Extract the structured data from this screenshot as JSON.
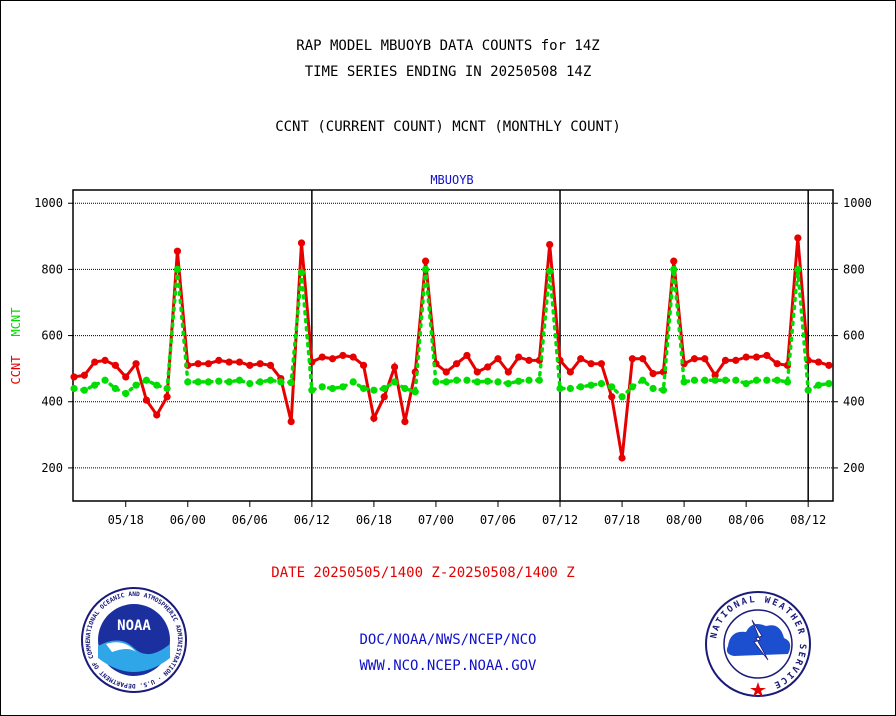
{
  "titles": {
    "line1": "RAP MODEL MBUOYB DATA COUNTS for 14Z",
    "line2": "TIME SERIES ENDING IN 20250508 14Z",
    "line3": "CCNT (CURRENT COUNT) MCNT (MONTHLY COUNT)"
  },
  "plot_label": "MBUOYB",
  "ylabel_ccnt": "CCNT",
  "ylabel_mcnt": "MCNT",
  "date_range": "DATE 20250505/1400 Z-20250508/1400 Z",
  "credits": {
    "line1": "DOC/NOAA/NWS/NCEP/NCO",
    "line2": "WWW.NCO.NCEP.NOAA.GOV"
  },
  "logos": {
    "left": "noaa-logo",
    "right": "national-weather-service-logo",
    "left_text": "NOAA",
    "left_ring_text": "NATIONAL OCEANIC AND ATMOSPHERIC ADMINISTRATION · U.S. DEPARTMENT OF COMMERCE",
    "right_ring_text": "NATIONAL WEATHER SERVICE"
  },
  "colors": {
    "ccnt": "#e60000",
    "mcnt": "#00dd00",
    "credits": "#1010c8"
  },
  "chart_data": {
    "type": "line",
    "title": "MBUOYB",
    "ylim": [
      100,
      1040
    ],
    "yticks": [
      200,
      400,
      600,
      800,
      1000
    ],
    "x_tick_labels": [
      "05/18",
      "06/00",
      "06/06",
      "06/12",
      "06/18",
      "07/00",
      "07/06",
      "07/12",
      "07/18",
      "08/00",
      "08/06",
      "08/12"
    ],
    "x_tick_index": [
      5,
      11,
      17,
      23,
      29,
      35,
      41,
      47,
      53,
      59,
      65,
      71
    ],
    "x_start_label": "05/13",
    "x_step_hours": 1,
    "x_count": 74,
    "day_boundaries_index": [
      23,
      47,
      71
    ],
    "grid": true,
    "legend": "none",
    "series": [
      {
        "name": "CCNT",
        "color": "#e60000",
        "values": [
          475,
          480,
          520,
          525,
          510,
          475,
          515,
          405,
          360,
          415,
          855,
          510,
          515,
          515,
          525,
          520,
          520,
          510,
          515,
          510,
          470,
          340,
          880,
          520,
          535,
          530,
          540,
          535,
          510,
          350,
          415,
          505,
          340,
          490,
          825,
          515,
          490,
          515,
          540,
          490,
          505,
          530,
          490,
          535,
          525,
          525,
          875,
          525,
          490,
          530,
          515,
          515,
          415,
          230,
          530,
          530,
          485,
          490,
          825,
          515,
          530,
          530,
          480,
          525,
          525,
          535,
          535,
          540,
          515,
          510,
          895,
          525,
          520,
          510
        ]
      },
      {
        "name": "MCNT",
        "color": "#00dd00",
        "values": [
          440,
          435,
          450,
          465,
          440,
          425,
          450,
          465,
          450,
          440,
          800,
          460,
          460,
          460,
          462,
          460,
          465,
          455,
          460,
          465,
          460,
          458,
          790,
          435,
          445,
          440,
          445,
          460,
          440,
          435,
          440,
          460,
          440,
          430,
          800,
          460,
          460,
          465,
          465,
          460,
          462,
          460,
          455,
          462,
          465,
          465,
          795,
          440,
          440,
          445,
          450,
          455,
          445,
          415,
          445,
          465,
          440,
          435,
          800,
          460,
          465,
          465,
          465,
          465,
          465,
          455,
          465,
          465,
          465,
          460,
          800,
          435,
          450,
          455
        ]
      }
    ]
  }
}
